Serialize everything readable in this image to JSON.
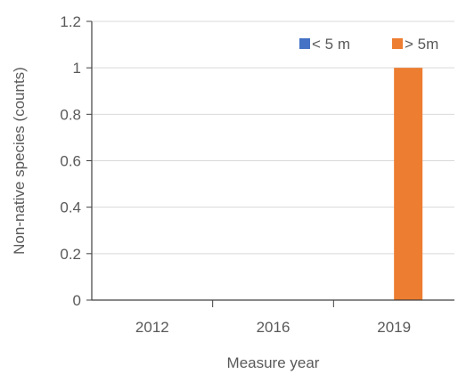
{
  "chart_data": {
    "type": "bar",
    "title": "",
    "xlabel": "Measure year",
    "ylabel": "Non-native species  (counts)",
    "categories": [
      "2012",
      "2016",
      "2019"
    ],
    "series": [
      {
        "name": "< 5 m",
        "values": [
          0,
          0,
          0
        ],
        "color": "#4472c4"
      },
      {
        "name": "> 5m",
        "values": [
          0,
          0,
          1
        ],
        "color": "#ed7d31"
      }
    ],
    "ylim": [
      0,
      1.2
    ],
    "yticks": [
      "0",
      "0.2",
      "0.4",
      "0.6",
      "0.8",
      "1",
      "1.2"
    ],
    "grid": true,
    "legend": "top-right"
  }
}
